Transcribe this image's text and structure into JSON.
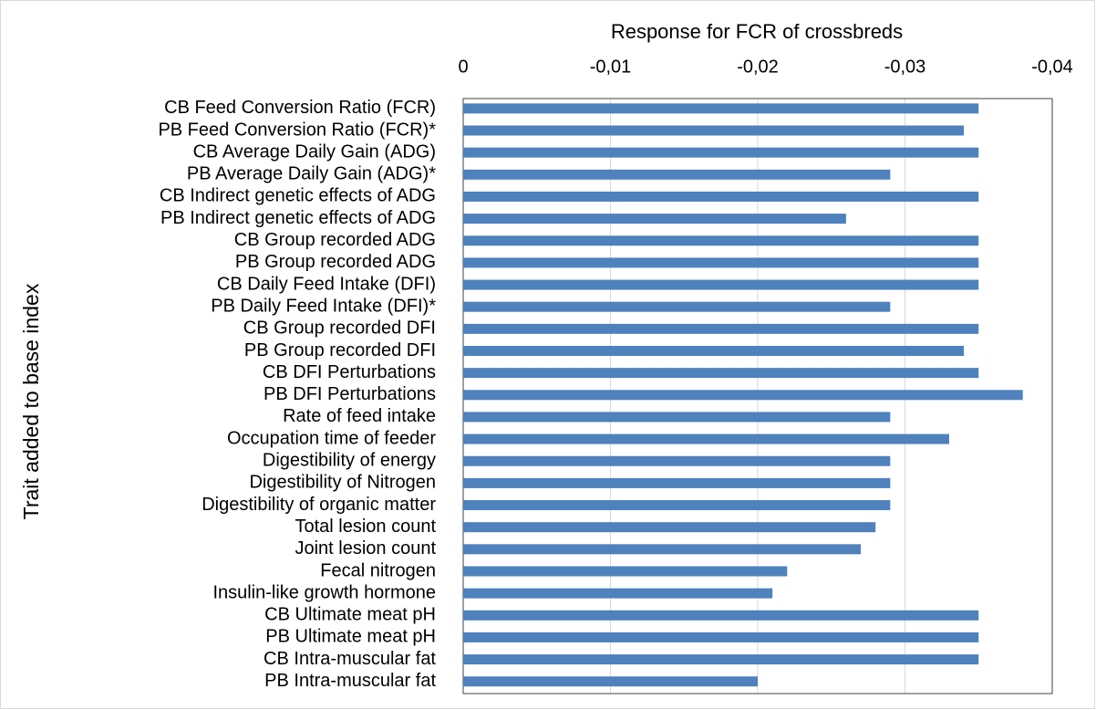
{
  "chart_data": {
    "type": "barh",
    "title": "Response for FCR of crossbreds",
    "y_label": "Trait added to base index",
    "categories": [
      "CB Feed Conversion Ratio (FCR)",
      "PB Feed Conversion Ratio (FCR)*",
      "CB Average Daily Gain (ADG)",
      "PB Average Daily Gain (ADG)*",
      "CB Indirect genetic effects of ADG",
      "PB Indirect genetic effects of ADG",
      "CB Group recorded ADG",
      "PB Group recorded ADG",
      "CB Daily Feed Intake (DFI)",
      "PB Daily Feed Intake (DFI)*",
      "CB Group recorded DFI",
      "PB Group recorded DFI",
      "CB DFI Perturbations",
      "PB DFI Perturbations",
      "Rate of feed intake",
      "Occupation time of feeder",
      "Digestibility of energy",
      "Digestibility of Nitrogen",
      "Digestibility of organic matter",
      "Total lesion count",
      "Joint lesion count",
      "Fecal nitrogen",
      "Insulin-like growth hormone",
      "CB Ultimate meat pH",
      "PB Ultimate meat pH",
      "CB Intra-muscular fat",
      "PB Intra-muscular fat"
    ],
    "values": [
      -0.035,
      -0.034,
      -0.035,
      -0.029,
      -0.035,
      -0.026,
      -0.035,
      -0.035,
      -0.035,
      -0.029,
      -0.035,
      -0.034,
      -0.035,
      -0.038,
      -0.029,
      -0.033,
      -0.029,
      -0.029,
      -0.029,
      -0.028,
      -0.027,
      -0.022,
      -0.021,
      -0.035,
      -0.035,
      -0.035,
      -0.02
    ],
    "color": "#4f81bd",
    "xlim": [
      0,
      -0.04
    ],
    "xticks": [
      0,
      {
        "value": -0.01,
        "label": "-0,01"
      },
      {
        "value": -0.02,
        "label": "-0,02"
      },
      {
        "value": -0.03,
        "label": "-0,03"
      },
      {
        "value": -0.04,
        "label": "-0,04"
      }
    ],
    "grid": true
  }
}
